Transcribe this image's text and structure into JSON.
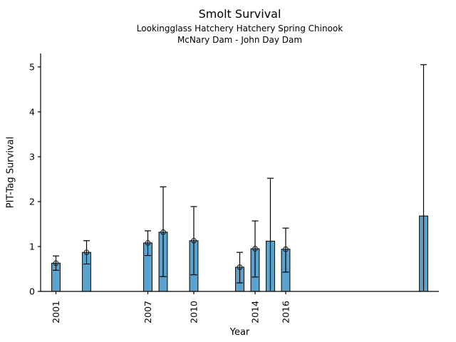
{
  "chart_data": {
    "type": "bar",
    "title": "Smolt Survival",
    "subtitle1": "Lookingglass Hatchery Hatchery Spring Chinook",
    "subtitle2": "McNary Dam - John Day Dam",
    "xlabel": "Year",
    "ylabel": "PIT-Tag Survival",
    "xlim": [
      2000,
      2026
    ],
    "ylim": [
      0,
      5.3
    ],
    "yticks": [
      0,
      1,
      2,
      3,
      4,
      5
    ],
    "xticks": [
      2001,
      2007,
      2010,
      2014,
      2016
    ],
    "grid": false,
    "legend": "none",
    "bar_color": "#5BA3CF",
    "bar_edge_color": "#000000",
    "error_color": "#000000",
    "marker_style": "open-circle",
    "bar_width_years": 0.55,
    "bars": [
      {
        "year": 2001,
        "value": 0.63,
        "err_low": 0.47,
        "err_high": 0.79,
        "marker": true,
        "low_cap": true
      },
      {
        "year": 2003,
        "value": 0.87,
        "err_low": 0.61,
        "err_high": 1.13,
        "marker": true,
        "low_cap": true
      },
      {
        "year": 2007,
        "value": 1.08,
        "err_low": 0.8,
        "err_high": 1.35,
        "marker": true,
        "low_cap": true
      },
      {
        "year": 2008,
        "value": 1.32,
        "err_low": 0.33,
        "err_high": 2.33,
        "marker": true,
        "low_cap": true
      },
      {
        "year": 2010,
        "value": 1.13,
        "err_low": 0.37,
        "err_high": 1.89,
        "marker": true,
        "low_cap": true
      },
      {
        "year": 2013,
        "value": 0.54,
        "err_low": 0.19,
        "err_high": 0.87,
        "marker": true,
        "low_cap": true
      },
      {
        "year": 2014,
        "value": 0.95,
        "err_low": 0.32,
        "err_high": 1.57,
        "marker": true,
        "low_cap": true
      },
      {
        "year": 2015,
        "value": 1.12,
        "err_low": 0.02,
        "err_high": 2.52,
        "marker": false,
        "low_cap": false
      },
      {
        "year": 2016,
        "value": 0.94,
        "err_low": 0.43,
        "err_high": 1.41,
        "marker": true,
        "low_cap": true
      },
      {
        "year": 2025,
        "value": 1.68,
        "err_low": 0.02,
        "err_high": 5.05,
        "marker": false,
        "low_cap": false
      }
    ]
  }
}
